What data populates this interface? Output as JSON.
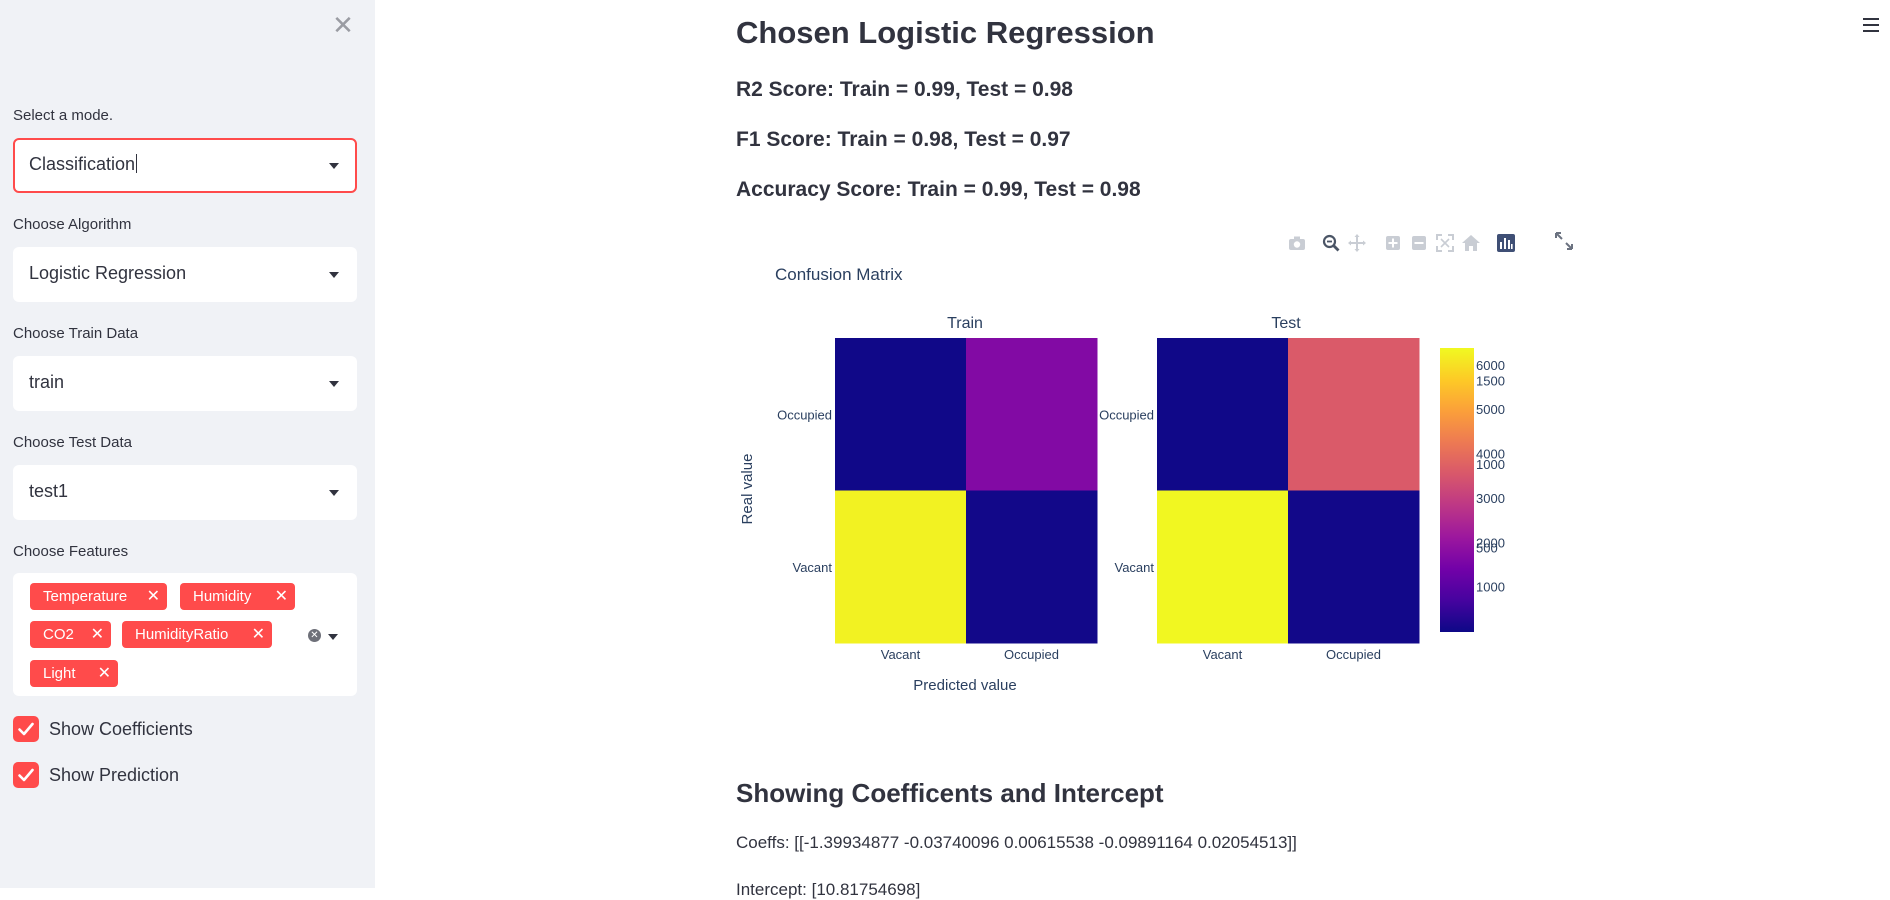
{
  "sidebar": {
    "close_icon": "close-icon",
    "mode": {
      "label": "Select a mode.",
      "value": "Classification"
    },
    "algorithm": {
      "label": "Choose Algorithm",
      "value": "Logistic Regression"
    },
    "train_data": {
      "label": "Choose Train Data",
      "value": "train"
    },
    "test_data": {
      "label": "Choose Test Data",
      "value": "test1"
    },
    "features": {
      "label": "Choose Features",
      "tags": [
        "Temperature",
        "Humidity",
        "CO2",
        "HumidityRatio",
        "Light"
      ]
    },
    "show_coefficients": {
      "label": "Show Coefficients",
      "checked": true
    },
    "show_prediction": {
      "label": "Show Prediction",
      "checked": true
    },
    "accent_color": "#ff4b4b"
  },
  "main": {
    "title": "Chosen Logistic Regression",
    "metrics": {
      "r2": "R2 Score: Train = 0.99, Test = 0.98",
      "f1": "F1 Score: Train = 0.98, Test = 0.97",
      "accuracy": "Accuracy Score: Train = 0.99, Test = 0.98"
    },
    "coef_heading": "Showing Coefficents and Intercept",
    "coeffs": "Coeffs: [[-1.39934877 -0.03740096 0.00615538 -0.09891164 0.02054513]]",
    "intercept": "Intercept: [10.81754698]"
  },
  "chart_data": {
    "type": "heatmap",
    "title": "Confusion Matrix",
    "xlabel": "Predicted value",
    "ylabel": "Real value",
    "x_categories": [
      "Vacant",
      "Occupied"
    ],
    "y_categories": [
      "Occupied",
      "Vacant"
    ],
    "panels": [
      {
        "name": "Train",
        "values": [
          [
            40,
            1700
          ],
          [
            6300,
            60
          ]
        ],
        "colorbar_ticks": [
          1000,
          2000,
          3000,
          4000,
          5000,
          6000
        ],
        "zlim": [
          0,
          6400
        ]
      },
      {
        "name": "Test",
        "values": [
          [
            10,
            960
          ],
          [
            1690,
            15
          ]
        ],
        "colorbar_ticks": [
          500,
          1000,
          1500
        ],
        "zlim": [
          0,
          1700
        ]
      }
    ],
    "colorscale": "plasma"
  }
}
